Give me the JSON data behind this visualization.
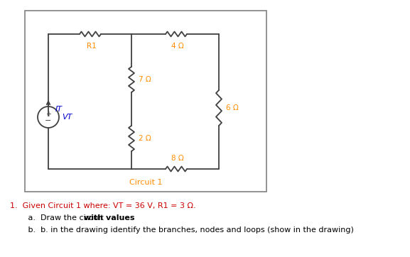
{
  "text_color_orange": "#FF8C00",
  "text_color_blue": "#0000CD",
  "text_color_black": "#000000",
  "text_color_red": "#CC0000",
  "bg_color": "#FFFFFF",
  "box_color": "#808080",
  "wire_color": "#404040",
  "vt_label": "VT",
  "it_label": "IT",
  "r1_label": "R1",
  "r_4_label": "4 Ω",
  "r_7_label": "7 Ω",
  "r_2_label": "2 Ω",
  "r_6_label": "6 Ω",
  "r_8_label": "8 Ω",
  "circuit_label": "Circuit 1",
  "problem_line1": "1.  Given Circuit 1 where: VT = 36 V, R1 = 3 Ω.",
  "problem_line2a": "     a.  Draw the circuit ",
  "problem_line2b": "with values",
  "problem_line3": "     b.  b. in the drawing identify the branches, nodes and loops (show in the drawing)"
}
